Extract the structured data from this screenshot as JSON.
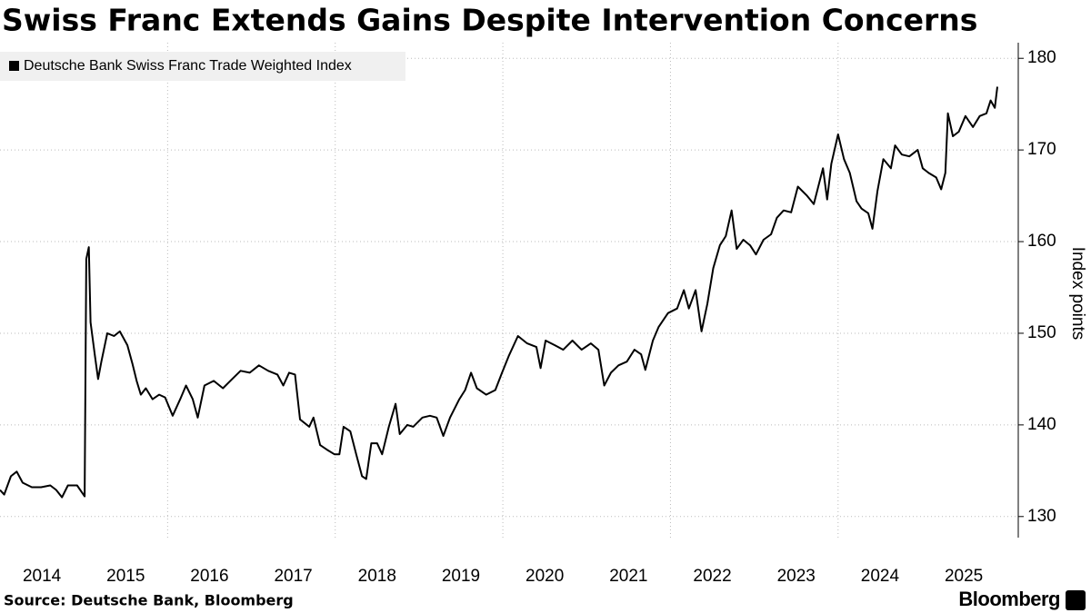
{
  "chart_data": {
    "type": "line",
    "title": "Swiss Franc Extends Gains Despite Intervention Concerns",
    "y_label": "Index points",
    "source": "Source: Deutsche Bank, Bloomberg",
    "brand": "Bloomberg",
    "x": [
      2014.0,
      2014.05,
      2014.13,
      2014.2,
      2014.27,
      2014.38,
      2014.49,
      2014.6,
      2014.67,
      2014.74,
      2014.81,
      2014.92,
      2015.01,
      2015.03,
      2015.06,
      2015.08,
      2015.13,
      2015.17,
      2015.21,
      2015.28,
      2015.36,
      2015.43,
      2015.52,
      2015.58,
      2015.63,
      2015.68,
      2015.74,
      2015.82,
      2015.9,
      2015.97,
      2016.06,
      2016.15,
      2016.22,
      2016.3,
      2016.36,
      2016.44,
      2016.55,
      2016.66,
      2016.77,
      2016.87,
      2016.98,
      2017.09,
      2017.2,
      2017.31,
      2017.38,
      2017.45,
      2017.52,
      2017.58,
      2017.69,
      2017.74,
      2017.82,
      2017.9,
      2017.99,
      2018.05,
      2018.1,
      2018.18,
      2018.25,
      2018.32,
      2018.37,
      2018.43,
      2018.5,
      2018.56,
      2018.64,
      2018.72,
      2018.77,
      2018.86,
      2018.93,
      2019.04,
      2019.13,
      2019.21,
      2019.29,
      2019.37,
      2019.48,
      2019.55,
      2019.62,
      2019.69,
      2019.8,
      2019.91,
      2019.99,
      2020.07,
      2020.18,
      2020.29,
      2020.4,
      2020.45,
      2020.51,
      2020.62,
      2020.72,
      2020.83,
      2020.94,
      2021.05,
      2021.14,
      2021.21,
      2021.29,
      2021.38,
      2021.48,
      2021.57,
      2021.65,
      2021.7,
      2021.79,
      2021.86,
      2021.97,
      2022.08,
      2022.16,
      2022.22,
      2022.3,
      2022.37,
      2022.44,
      2022.51,
      2022.59,
      2022.66,
      2022.73,
      2022.79,
      2022.87,
      2022.95,
      2023.02,
      2023.11,
      2023.2,
      2023.27,
      2023.35,
      2023.44,
      2023.52,
      2023.63,
      2023.71,
      2023.82,
      2023.87,
      2023.92,
      2024.0,
      2024.07,
      2024.14,
      2024.22,
      2024.28,
      2024.36,
      2024.41,
      2024.47,
      2024.54,
      2024.63,
      2024.68,
      2024.76,
      2024.85,
      2024.95,
      2025.01,
      2025.08,
      2025.17,
      2025.23,
      2025.28,
      2025.31,
      2025.37,
      2025.44,
      2025.52,
      2025.61,
      2025.69,
      2025.77,
      2025.82,
      2025.87,
      2025.9
    ],
    "series": [
      {
        "name": "Deutsche Bank Swiss Franc Trade Weighted Index",
        "color": "#000000",
        "values": [
          132.9,
          132.4,
          134.4,
          134.9,
          133.7,
          133.2,
          133.2,
          133.4,
          132.9,
          132.1,
          133.4,
          133.4,
          132.2,
          158.1,
          159.4,
          151.2,
          147.7,
          145.0,
          146.9,
          150.0,
          149.7,
          150.2,
          148.7,
          146.7,
          144.8,
          143.3,
          144.0,
          142.8,
          143.3,
          143.0,
          141.0,
          142.8,
          144.3,
          142.8,
          140.8,
          144.3,
          144.8,
          144.0,
          145.0,
          145.9,
          145.7,
          146.5,
          145.9,
          145.5,
          144.3,
          145.7,
          145.5,
          140.6,
          139.8,
          140.8,
          137.8,
          137.3,
          136.8,
          136.8,
          139.8,
          139.3,
          136.8,
          134.4,
          134.1,
          138.0,
          138.0,
          136.8,
          139.8,
          142.3,
          139.0,
          140.0,
          139.8,
          140.8,
          141.0,
          140.8,
          138.8,
          140.8,
          142.8,
          143.8,
          145.7,
          144.0,
          143.3,
          143.8,
          145.7,
          147.5,
          149.7,
          148.9,
          148.5,
          146.2,
          149.2,
          148.7,
          148.2,
          149.2,
          148.2,
          148.9,
          148.2,
          144.3,
          145.7,
          146.5,
          146.9,
          148.2,
          147.7,
          146.0,
          149.2,
          150.7,
          152.2,
          152.7,
          154.7,
          152.7,
          154.7,
          150.2,
          153.2,
          157.1,
          159.6,
          160.6,
          163.4,
          159.2,
          160.2,
          159.6,
          158.6,
          160.2,
          160.8,
          162.6,
          163.4,
          163.2,
          166.0,
          165.0,
          164.1,
          168.0,
          164.6,
          168.5,
          171.7,
          169.0,
          167.5,
          164.4,
          163.6,
          163.1,
          161.4,
          165.5,
          169.0,
          168.0,
          170.5,
          169.5,
          169.3,
          170.0,
          168.0,
          167.5,
          167.0,
          165.7,
          167.5,
          174.0,
          171.5,
          172.0,
          173.7,
          172.5,
          173.7,
          174.0,
          175.4,
          174.6,
          176.9
        ]
      }
    ],
    "xlim": [
      2014.0,
      2026.15
    ],
    "xticks": [
      {
        "value": 2014.5,
        "label": "2014"
      },
      {
        "value": 2015.5,
        "label": "2015"
      },
      {
        "value": 2016.5,
        "label": "2016"
      },
      {
        "value": 2017.5,
        "label": "2017"
      },
      {
        "value": 2018.5,
        "label": "2018"
      },
      {
        "value": 2019.5,
        "label": "2019"
      },
      {
        "value": 2020.5,
        "label": "2020"
      },
      {
        "value": 2021.5,
        "label": "2021"
      },
      {
        "value": 2022.5,
        "label": "2022"
      },
      {
        "value": 2023.5,
        "label": "2023"
      },
      {
        "value": 2024.5,
        "label": "2024"
      },
      {
        "value": 2025.5,
        "label": "2025"
      }
    ],
    "xgrid": [
      2016,
      2018,
      2020,
      2022,
      2024
    ],
    "ylim": [
      127.7,
      182.4
    ],
    "yticks": [
      130,
      140,
      150,
      160,
      170,
      180
    ],
    "grid": true,
    "legend": "top-left"
  }
}
